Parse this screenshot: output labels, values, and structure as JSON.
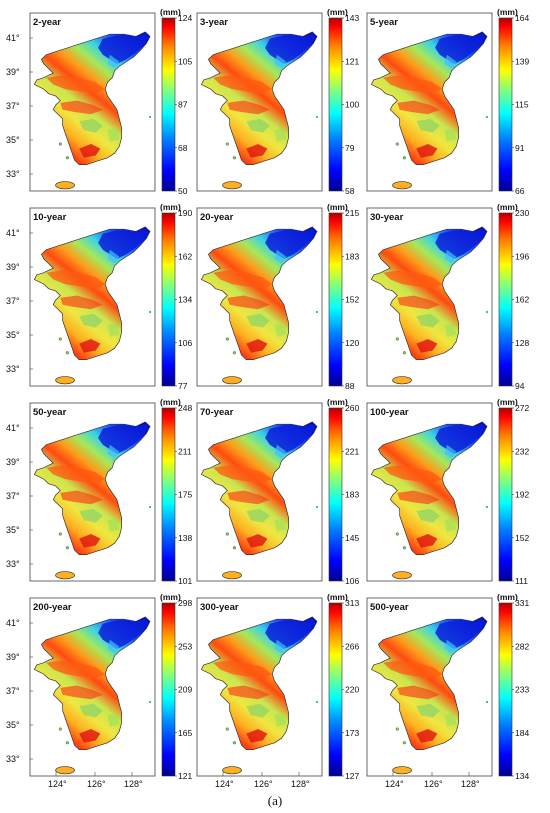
{
  "figure": {
    "caption": "(a)",
    "unit": "(mm)",
    "lat_labels": [
      "41°",
      "39°",
      "37°",
      "35°",
      "33°"
    ],
    "lon_labels": [
      "124°",
      "126°",
      "128°"
    ],
    "colormap": [
      "#00008f",
      "#0000ff",
      "#0080ff",
      "#00ffff",
      "#80ff80",
      "#ffff00",
      "#ff8000",
      "#ff0000",
      "#800000"
    ],
    "land_low_region": "north-east",
    "panels": [
      {
        "title": "2-year",
        "ticks": [
          "124",
          "105",
          "87",
          "68",
          "50"
        ]
      },
      {
        "title": "3-year",
        "ticks": [
          "143",
          "121",
          "100",
          "79",
          "58"
        ]
      },
      {
        "title": "5-year",
        "ticks": [
          "164",
          "139",
          "115",
          "91",
          "66"
        ]
      },
      {
        "title": "10-year",
        "ticks": [
          "190",
          "162",
          "134",
          "106",
          "77"
        ]
      },
      {
        "title": "20-year",
        "ticks": [
          "215",
          "183",
          "152",
          "120",
          "88"
        ]
      },
      {
        "title": "30-year",
        "ticks": [
          "230",
          "196",
          "162",
          "128",
          "94"
        ]
      },
      {
        "title": "50-year",
        "ticks": [
          "248",
          "211",
          "175",
          "138",
          "101"
        ]
      },
      {
        "title": "70-year",
        "ticks": [
          "260",
          "221",
          "183",
          "145",
          "106"
        ]
      },
      {
        "title": "100-year",
        "ticks": [
          "272",
          "232",
          "192",
          "152",
          "111"
        ]
      },
      {
        "title": "200-year",
        "ticks": [
          "298",
          "253",
          "209",
          "165",
          "121"
        ]
      },
      {
        "title": "300-year",
        "ticks": [
          "313",
          "266",
          "220",
          "173",
          "127"
        ]
      },
      {
        "title": "500-year",
        "ticks": [
          "331",
          "282",
          "233",
          "184",
          "134"
        ]
      }
    ]
  }
}
